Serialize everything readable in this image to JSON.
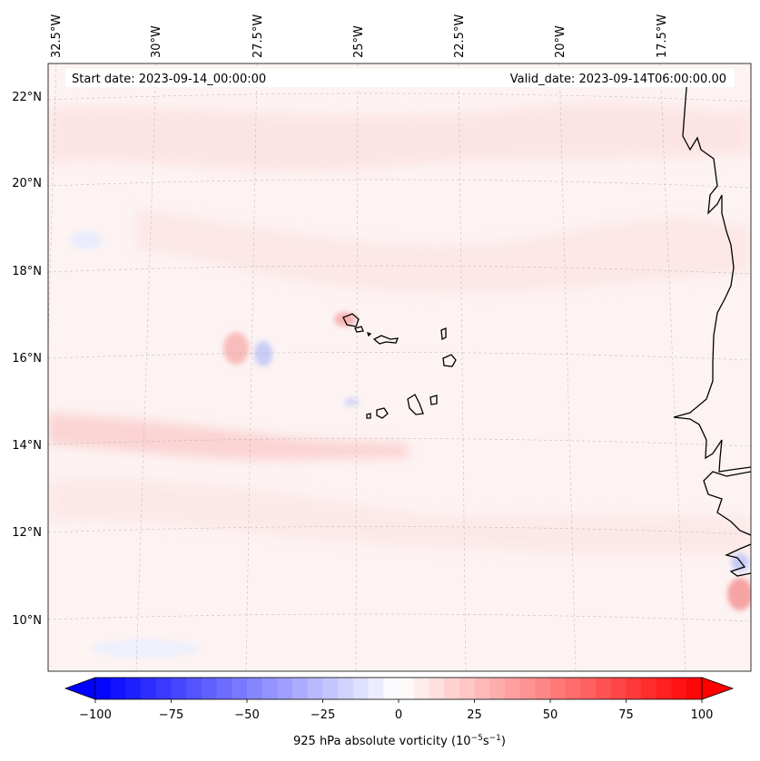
{
  "header": {
    "start_date": "Start date: 2023-09-14_00:00:00",
    "valid_date": "Valid_date: 2023-09-14T06:00:00.00"
  },
  "map": {
    "lat_labels": [
      "22°N",
      "20°N",
      "18°N",
      "16°N",
      "14°N",
      "12°N",
      "10°N"
    ],
    "lon_labels": [
      "32.5°W",
      "30°W",
      "27.5°W",
      "25°W",
      "22.5°W",
      "20°W",
      "17.5°W"
    ]
  },
  "colorbar": {
    "ticks": [
      "−100",
      "−75",
      "−50",
      "−25",
      "0",
      "25",
      "50",
      "75",
      "100"
    ],
    "min": -100,
    "max": 100,
    "step": 5,
    "label_main": "925 hPa absolute vorticity (10",
    "label_exp1": "−5",
    "label_mid": "s",
    "label_exp2": "−1",
    "label_end": ")",
    "neg_color": "#0000ff",
    "pos_color": "#ff0000",
    "mid_color": "#ffffff"
  }
}
